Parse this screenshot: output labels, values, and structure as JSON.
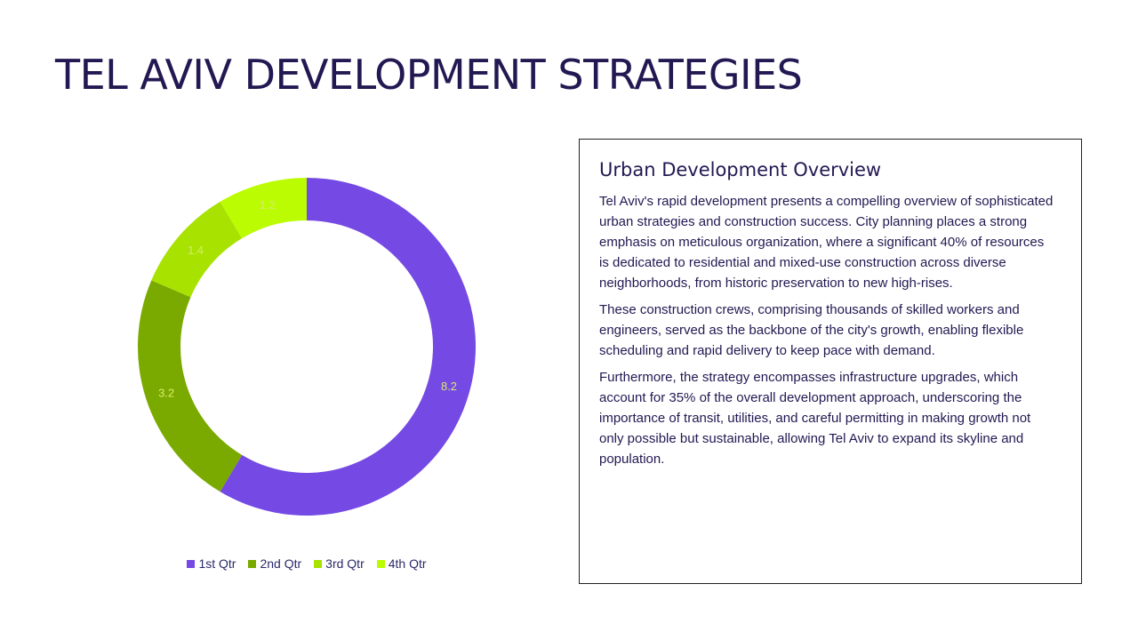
{
  "slide": {
    "title": "TEL AVIV DEVELOPMENT STRATEGIES"
  },
  "chart_data": {
    "type": "pie",
    "variant": "doughnut",
    "categories": [
      "1st Qtr",
      "2nd Qtr",
      "3rd Qtr",
      "4th Qtr"
    ],
    "values": [
      8.2,
      3.2,
      1.4,
      1.2
    ],
    "colors": [
      "#7549E3",
      "#7AAA00",
      "#A8E200",
      "#BCFC02"
    ],
    "data_labels": [
      "8.2",
      "3.2",
      "1.4",
      "1.2"
    ],
    "label_colors": [
      "#D7EB6E",
      "#D7EB6E",
      "#D7EB6E",
      "#D7EB6E"
    ],
    "legend_position": "bottom",
    "title": ""
  },
  "text_box": {
    "heading": "Urban Development Overview",
    "paragraphs": [
      "Tel Aviv's rapid development presents a compelling overview of sophisticated urban strategies and construction success. City planning places a strong emphasis on meticulous organization, where a significant 40% of resources is dedicated to residential and mixed-use construction across diverse neighborhoods, from historic preservation to new high-rises.",
      "These construction crews, comprising thousands of skilled workers and engineers, served as the backbone of the city's growth, enabling flexible scheduling and rapid delivery to keep pace with demand.",
      "Furthermore, the strategy encompasses infrastructure upgrades, which account for 35% of the overall development approach, underscoring the importance of transit, utilities, and careful permitting in making growth not only possible but sustainable, allowing Tel Aviv to expand its skyline and population."
    ]
  }
}
